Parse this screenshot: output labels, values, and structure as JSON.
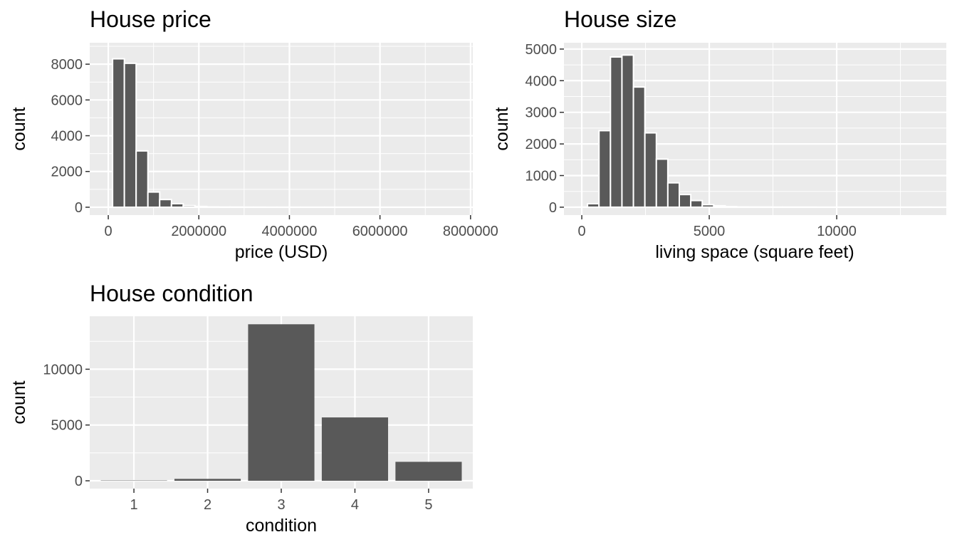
{
  "colors": {
    "panel_background": "#ebebeb",
    "gridline": "#ffffff",
    "bar_fill": "#595959",
    "bar_outline": "#ffffff",
    "tick_label": "#4d4d4d",
    "axis_tick": "#333333",
    "text": "#000000"
  },
  "chart_data": [
    {
      "id": "price",
      "type": "bar",
      "title": "House price",
      "xlabel": "price (USD)",
      "ylabel": "count",
      "grid": true,
      "bar_outline": true,
      "xlim": [
        -410000,
        8050000
      ],
      "ylim": [
        -440,
        9200
      ],
      "x_ticks": [
        0,
        2000000,
        4000000,
        6000000,
        8000000
      ],
      "x_tick_labels": [
        "0",
        "2000000",
        "4000000",
        "6000000",
        "8000000"
      ],
      "y_ticks": [
        0,
        2000,
        4000,
        6000,
        8000
      ],
      "y_tick_labels": [
        "0",
        "2000",
        "4000",
        "6000",
        "8000"
      ],
      "bin_width": 260000,
      "bin_centers": [
        -35000,
        225000,
        485000,
        745000,
        1005000,
        1265000,
        1525000,
        1785000,
        2045000,
        2305000,
        2565000,
        2825000,
        3085000,
        3345000,
        3605000,
        3865000,
        4125000,
        4385000,
        4645000,
        4905000,
        5165000,
        5425000,
        5685000,
        5945000,
        6205000,
        6465000,
        6725000,
        6985000,
        7245000,
        7505000,
        7765000
      ],
      "counts": [
        5,
        8300,
        8050,
        3150,
        850,
        430,
        200,
        90,
        45,
        20,
        10,
        8,
        5,
        4,
        3,
        2,
        1,
        1,
        1,
        1,
        0,
        0,
        0,
        0,
        0,
        0,
        0,
        0,
        0,
        0,
        1
      ]
    },
    {
      "id": "size",
      "type": "bar",
      "title": "House size",
      "xlabel": "living space (square feet)",
      "ylabel": "count",
      "grid": true,
      "bar_outline": true,
      "xlim": [
        -700,
        14300
      ],
      "ylim": [
        -250,
        5200
      ],
      "x_ticks": [
        0,
        5000,
        10000
      ],
      "x_tick_labels": [
        "0",
        "5000",
        "10000"
      ],
      "y_ticks": [
        0,
        1000,
        2000,
        3000,
        4000,
        5000
      ],
      "y_tick_labels": [
        "0",
        "1000",
        "2000",
        "3000",
        "4000",
        "5000"
      ],
      "bin_width": 450,
      "bin_centers": [
        0,
        450,
        900,
        1350,
        1800,
        2250,
        2700,
        3150,
        3600,
        4050,
        4500,
        4950,
        5400,
        5850,
        6300,
        6750,
        7200,
        7650,
        8100,
        8550,
        9000,
        9450,
        9900,
        10350,
        10800,
        11250,
        11700,
        12150,
        12600,
        13050,
        13500
      ],
      "counts": [
        2,
        110,
        2420,
        4750,
        4810,
        3800,
        2350,
        1520,
        770,
        400,
        210,
        80,
        45,
        20,
        10,
        6,
        4,
        2,
        1,
        1,
        1,
        0,
        0,
        0,
        0,
        0,
        0,
        0,
        0,
        0,
        1
      ]
    },
    {
      "id": "condition",
      "type": "bar",
      "title": "House condition",
      "xlabel": "condition",
      "ylabel": "count",
      "grid": true,
      "bar_outline": false,
      "categories": [
        "1",
        "2",
        "3",
        "4",
        "5"
      ],
      "values": [
        30,
        170,
        14030,
        5680,
        1700
      ],
      "ylim": [
        -700,
        14750
      ],
      "y_ticks": [
        0,
        5000,
        10000
      ],
      "y_tick_labels": [
        "0",
        "5000",
        "10000"
      ]
    }
  ]
}
